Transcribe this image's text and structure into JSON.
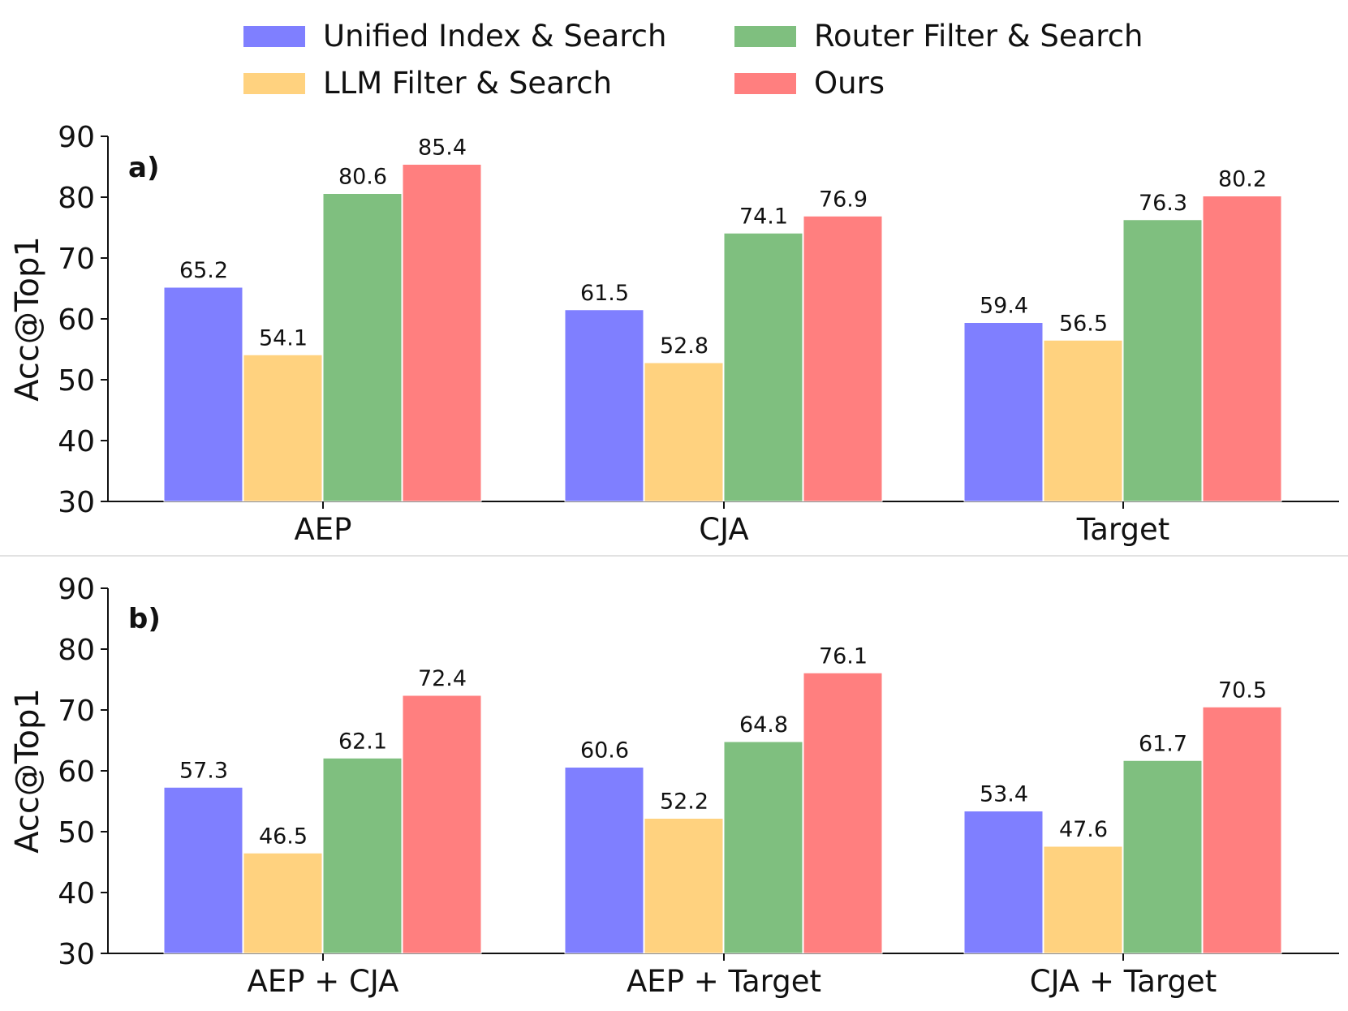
{
  "chart_data": [
    {
      "type": "bar",
      "panel_label": "a)",
      "ylabel": "Acc@Top1",
      "ylim": [
        30,
        90
      ],
      "yticks": [
        30,
        40,
        50,
        60,
        70,
        80,
        90
      ],
      "categories": [
        "AEP",
        "CJA",
        "Target"
      ],
      "series": [
        {
          "name": "Unified Index & Search",
          "color": "#7f7fff",
          "values": [
            65.2,
            61.5,
            59.4
          ]
        },
        {
          "name": "LLM Filter & Search",
          "color": "#ffd27f",
          "values": [
            54.1,
            52.8,
            56.5
          ]
        },
        {
          "name": "Router Filter & Search",
          "color": "#7fbf7f",
          "values": [
            80.6,
            74.1,
            76.3
          ]
        },
        {
          "name": "Ours",
          "color": "#ff7f7f",
          "values": [
            85.4,
            76.9,
            80.2
          ]
        }
      ],
      "legend_position": "top-center",
      "grid": false
    },
    {
      "type": "bar",
      "panel_label": "b)",
      "ylabel": "Acc@Top1",
      "ylim": [
        30,
        90
      ],
      "yticks": [
        30,
        40,
        50,
        60,
        70,
        80,
        90
      ],
      "categories": [
        "AEP + CJA",
        "AEP + Target",
        "CJA + Target"
      ],
      "series": [
        {
          "name": "Unified Index & Search",
          "color": "#7f7fff",
          "values": [
            57.3,
            60.6,
            53.4
          ]
        },
        {
          "name": "LLM Filter & Search",
          "color": "#ffd27f",
          "values": [
            46.5,
            52.2,
            47.6
          ]
        },
        {
          "name": "Router Filter & Search",
          "color": "#7fbf7f",
          "values": [
            62.1,
            64.8,
            61.7
          ]
        },
        {
          "name": "Ours",
          "color": "#ff7f7f",
          "values": [
            72.4,
            76.1,
            70.5
          ]
        }
      ],
      "legend_position": "top-center",
      "grid": false
    }
  ],
  "legend": {
    "items": [
      {
        "label": "Unified Index & Search",
        "color": "#7f7fff"
      },
      {
        "label": "Router Filter & Search",
        "color": "#7fbf7f"
      },
      {
        "label": "LLM Filter & Search",
        "color": "#ffd27f"
      },
      {
        "label": "Ours",
        "color": "#ff7f7f"
      }
    ]
  }
}
